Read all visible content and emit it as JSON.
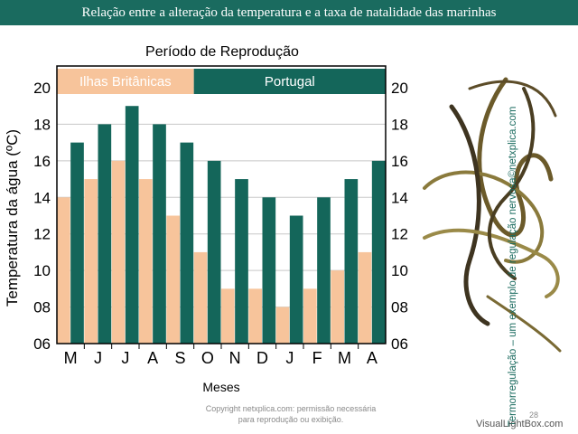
{
  "header": {
    "title": "Relação entre a alteração da temperatura e a taxa de natalidade das marinhas"
  },
  "colors": {
    "british": "#f7c49b",
    "portugal": "#14665a",
    "header_bg": "#1a6b5f"
  },
  "chart_data": {
    "type": "bar",
    "title": "Período de Reprodução",
    "xlabel": "Meses",
    "ylabel": "Temperatura da água (ºC)",
    "ylim": [
      6,
      21
    ],
    "yticks": [
      "06",
      "08",
      "10",
      "12",
      "14",
      "16",
      "18",
      "20"
    ],
    "grid": true,
    "categories": [
      "M",
      "J",
      "J",
      "A",
      "S",
      "O",
      "N",
      "D",
      "J",
      "F",
      "M",
      "A"
    ],
    "series": [
      {
        "name": "Ilhas Britânicas",
        "values": [
          14,
          15,
          16,
          15,
          13,
          11,
          9,
          9,
          8,
          9,
          10,
          11
        ]
      },
      {
        "name": "Portugal",
        "values": [
          17,
          18,
          19,
          18,
          17,
          16,
          15,
          14,
          13,
          14,
          15,
          16
        ]
      }
    ],
    "reproduction_periods": [
      {
        "label": "Ilhas Britânicas",
        "start": 0,
        "end": 5
      },
      {
        "label": "Portugal",
        "start": 5,
        "end": 12
      }
    ]
  },
  "side_text": "Termorregulação – um exemplo de regulação nervosa©netxplica.com",
  "footer": {
    "copyright": "Copyright netxplica.com: permissão necessária para reprodução ou exibição.",
    "page": "28",
    "watermark": "VisualLightBox.com"
  },
  "image": {
    "subject": "marine-eels-photo"
  }
}
